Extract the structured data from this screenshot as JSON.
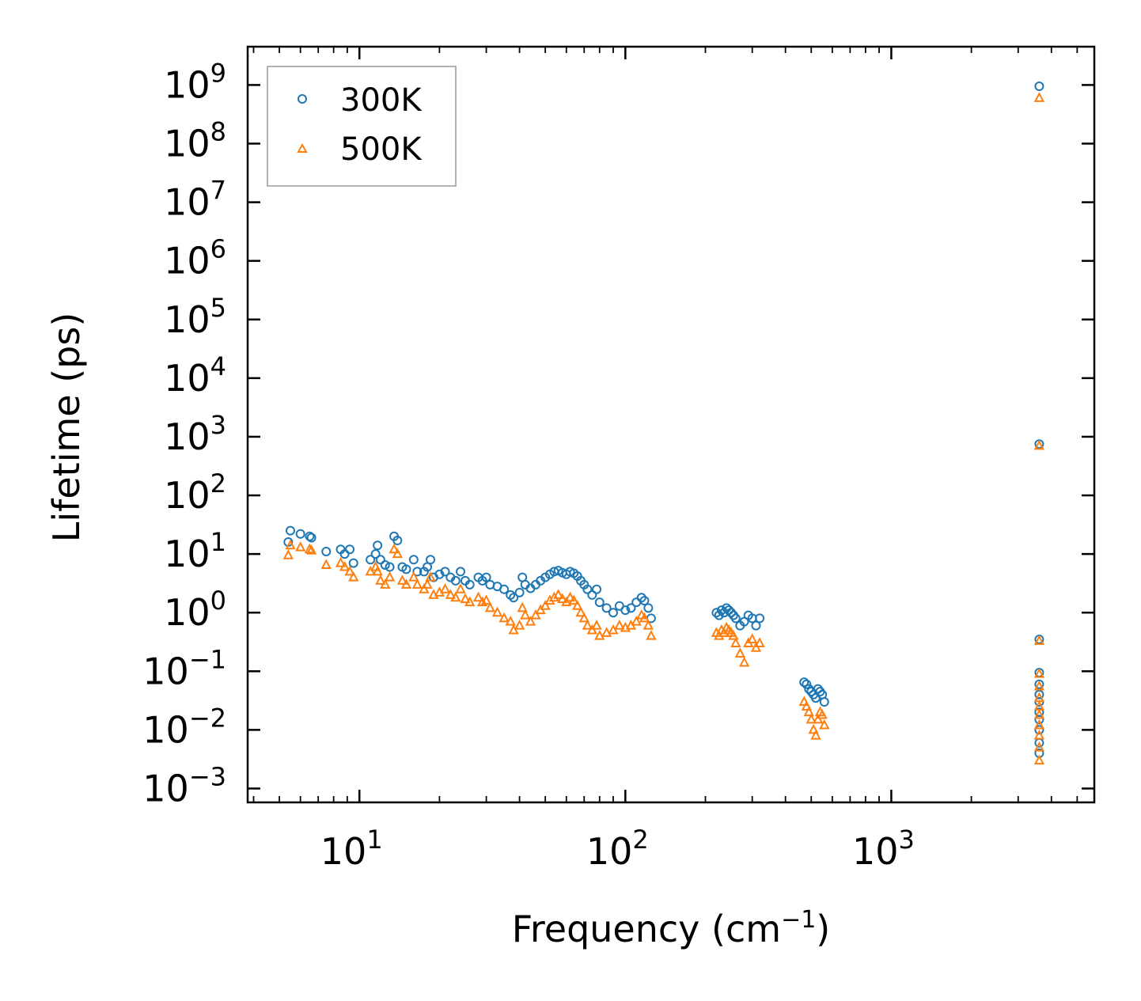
{
  "chart_data": {
    "type": "scatter",
    "title": "",
    "xlabel": "Frequency (cm",
    "xlabel_sup": "−1",
    "xlabel_close": ")",
    "ylabel": "Lifetime (ps)",
    "xscale": "log",
    "yscale": "log",
    "xlim": [
      3.8,
      5800
    ],
    "ylim": [
      0.00058,
      4500000000
    ],
    "x_ticks": [
      {
        "base": "10",
        "exp": "1",
        "value": 10
      },
      {
        "base": "10",
        "exp": "2",
        "value": 100
      },
      {
        "base": "10",
        "exp": "3",
        "value": 1000
      }
    ],
    "y_ticks": [
      {
        "base": "10",
        "exp": "9",
        "value": 1000000000.0
      },
      {
        "base": "10",
        "exp": "8",
        "value": 100000000.0
      },
      {
        "base": "10",
        "exp": "7",
        "value": 10000000.0
      },
      {
        "base": "10",
        "exp": "6",
        "value": 1000000.0
      },
      {
        "base": "10",
        "exp": "5",
        "value": 100000.0
      },
      {
        "base": "10",
        "exp": "4",
        "value": 10000.0
      },
      {
        "base": "10",
        "exp": "3",
        "value": 1000.0
      },
      {
        "base": "10",
        "exp": "2",
        "value": 100.0
      },
      {
        "base": "10",
        "exp": "1",
        "value": 10
      },
      {
        "base": "10",
        "exp": "0",
        "value": 1
      },
      {
        "base": "10",
        "exp": "−1",
        "value": 0.1
      },
      {
        "base": "10",
        "exp": "−2",
        "value": 0.01
      },
      {
        "base": "10",
        "exp": "−3",
        "value": 0.001
      }
    ],
    "legend_position": "top-left",
    "grid": false,
    "series": [
      {
        "name": "300K",
        "marker": "circle",
        "color": "#1f77b4",
        "points": [
          [
            5.4,
            16
          ],
          [
            5.5,
            25
          ],
          [
            6,
            22
          ],
          [
            6.5,
            20
          ],
          [
            6.6,
            19
          ],
          [
            7.5,
            11
          ],
          [
            8.5,
            12
          ],
          [
            8.8,
            10
          ],
          [
            9.2,
            12
          ],
          [
            9.5,
            7
          ],
          [
            11,
            8
          ],
          [
            11.5,
            10
          ],
          [
            11.7,
            14
          ],
          [
            12,
            8
          ],
          [
            12.5,
            6.5
          ],
          [
            13,
            6
          ],
          [
            13.5,
            20
          ],
          [
            13.9,
            17
          ],
          [
            14.5,
            6
          ],
          [
            15,
            5.5
          ],
          [
            16,
            8
          ],
          [
            16.5,
            5
          ],
          [
            17.5,
            5
          ],
          [
            18,
            6
          ],
          [
            18.5,
            8
          ],
          [
            19,
            4
          ],
          [
            20,
            4.5
          ],
          [
            21,
            5
          ],
          [
            22,
            4
          ],
          [
            23,
            3.5
          ],
          [
            24,
            5
          ],
          [
            25,
            3.5
          ],
          [
            26,
            3
          ],
          [
            28,
            4
          ],
          [
            29,
            3.5
          ],
          [
            30,
            4
          ],
          [
            31,
            3
          ],
          [
            33,
            2.8
          ],
          [
            35,
            2.5
          ],
          [
            37,
            2
          ],
          [
            38,
            1.8
          ],
          [
            40,
            2.2
          ],
          [
            41,
            4
          ],
          [
            42,
            3
          ],
          [
            44,
            2.6
          ],
          [
            46,
            3
          ],
          [
            48,
            3.5
          ],
          [
            50,
            4
          ],
          [
            52,
            4.5
          ],
          [
            54,
            5
          ],
          [
            56,
            5.2
          ],
          [
            58,
            4.8
          ],
          [
            60,
            4.5
          ],
          [
            62,
            5
          ],
          [
            64,
            4.7
          ],
          [
            66,
            4.2
          ],
          [
            68,
            3.5
          ],
          [
            70,
            3
          ],
          [
            72,
            2.5
          ],
          [
            75,
            2
          ],
          [
            78,
            2.5
          ],
          [
            80,
            1.5
          ],
          [
            85,
            1.2
          ],
          [
            90,
            1
          ],
          [
            95,
            1.3
          ],
          [
            100,
            1.1
          ],
          [
            105,
            1.2
          ],
          [
            110,
            1.5
          ],
          [
            115,
            1.8
          ],
          [
            118,
            1.6
          ],
          [
            122,
            1.2
          ],
          [
            125,
            0.8
          ],
          [
            220,
            1
          ],
          [
            225,
            0.9
          ],
          [
            230,
            1.1
          ],
          [
            235,
            1
          ],
          [
            240,
            1.2
          ],
          [
            245,
            1.1
          ],
          [
            250,
            1
          ],
          [
            255,
            0.9
          ],
          [
            260,
            0.8
          ],
          [
            270,
            0.6
          ],
          [
            280,
            0.7
          ],
          [
            290,
            0.9
          ],
          [
            300,
            0.8
          ],
          [
            310,
            0.6
          ],
          [
            320,
            0.8
          ],
          [
            470,
            0.065
          ],
          [
            480,
            0.06
          ],
          [
            490,
            0.05
          ],
          [
            500,
            0.045
          ],
          [
            510,
            0.04
          ],
          [
            520,
            0.035
          ],
          [
            530,
            0.05
          ],
          [
            540,
            0.045
          ],
          [
            550,
            0.04
          ],
          [
            560,
            0.03
          ],
          [
            3600,
            950000000
          ],
          [
            3600,
            750
          ],
          [
            3600,
            0.35
          ],
          [
            3600,
            0.095
          ],
          [
            3600,
            0.06
          ],
          [
            3600,
            0.04
          ],
          [
            3600,
            0.03
          ],
          [
            3600,
            0.02
          ],
          [
            3600,
            0.015
          ],
          [
            3600,
            0.01
          ],
          [
            3600,
            0.006
          ],
          [
            3600,
            0.004
          ]
        ]
      },
      {
        "name": "500K",
        "marker": "triangle",
        "color": "#ff7f0e",
        "points": [
          [
            5.4,
            9.5
          ],
          [
            5.5,
            14
          ],
          [
            6,
            13
          ],
          [
            6.5,
            12
          ],
          [
            6.6,
            11.5
          ],
          [
            7.5,
            6.5
          ],
          [
            8.5,
            7
          ],
          [
            8.8,
            6
          ],
          [
            9.2,
            5
          ],
          [
            9.5,
            4
          ],
          [
            11,
            5
          ],
          [
            11.5,
            6
          ],
          [
            11.7,
            5
          ],
          [
            12,
            3.5
          ],
          [
            12.5,
            3
          ],
          [
            13,
            4
          ],
          [
            13.5,
            12
          ],
          [
            13.9,
            10
          ],
          [
            14.5,
            3.5
          ],
          [
            15,
            3
          ],
          [
            16,
            4
          ],
          [
            16.5,
            3
          ],
          [
            17.5,
            2.5
          ],
          [
            18,
            3
          ],
          [
            18.5,
            4
          ],
          [
            19,
            2
          ],
          [
            20,
            2.2
          ],
          [
            21,
            2.5
          ],
          [
            22,
            2
          ],
          [
            23,
            1.8
          ],
          [
            24,
            2.5
          ],
          [
            25,
            1.7
          ],
          [
            26,
            1.5
          ],
          [
            28,
            1.8
          ],
          [
            29,
            1.5
          ],
          [
            30,
            1.6
          ],
          [
            31,
            1.2
          ],
          [
            33,
            1
          ],
          [
            35,
            0.8
          ],
          [
            37,
            0.7
          ],
          [
            38,
            0.5
          ],
          [
            40,
            0.6
          ],
          [
            41,
            1.2
          ],
          [
            42,
            0.9
          ],
          [
            44,
            0.7
          ],
          [
            46,
            0.9
          ],
          [
            48,
            1.1
          ],
          [
            50,
            1.3
          ],
          [
            52,
            1.6
          ],
          [
            54,
            1.8
          ],
          [
            56,
            2
          ],
          [
            58,
            1.7
          ],
          [
            60,
            1.5
          ],
          [
            62,
            1.8
          ],
          [
            64,
            1.6
          ],
          [
            66,
            1.3
          ],
          [
            68,
            1
          ],
          [
            70,
            0.8
          ],
          [
            72,
            0.6
          ],
          [
            75,
            0.5
          ],
          [
            78,
            0.6
          ],
          [
            80,
            0.4
          ],
          [
            85,
            0.45
          ],
          [
            90,
            0.5
          ],
          [
            95,
            0.6
          ],
          [
            100,
            0.55
          ],
          [
            105,
            0.6
          ],
          [
            110,
            0.7
          ],
          [
            115,
            0.9
          ],
          [
            118,
            0.8
          ],
          [
            122,
            0.6
          ],
          [
            125,
            0.4
          ],
          [
            220,
            0.45
          ],
          [
            225,
            0.4
          ],
          [
            230,
            0.5
          ],
          [
            235,
            0.45
          ],
          [
            240,
            0.55
          ],
          [
            245,
            0.5
          ],
          [
            250,
            0.45
          ],
          [
            255,
            0.4
          ],
          [
            260,
            0.3
          ],
          [
            270,
            0.2
          ],
          [
            280,
            0.14
          ],
          [
            290,
            0.3
          ],
          [
            300,
            0.35
          ],
          [
            310,
            0.25
          ],
          [
            320,
            0.3
          ],
          [
            470,
            0.03
          ],
          [
            480,
            0.025
          ],
          [
            490,
            0.02
          ],
          [
            500,
            0.015
          ],
          [
            510,
            0.01
          ],
          [
            520,
            0.008
          ],
          [
            530,
            0.015
          ],
          [
            540,
            0.02
          ],
          [
            550,
            0.018
          ],
          [
            560,
            0.012
          ],
          [
            3600,
            600000000
          ],
          [
            3600,
            700
          ],
          [
            3600,
            0.33
          ],
          [
            3600,
            0.09
          ],
          [
            3600,
            0.055
          ],
          [
            3600,
            0.035
          ],
          [
            3600,
            0.025
          ],
          [
            3600,
            0.018
          ],
          [
            3600,
            0.012
          ],
          [
            3600,
            0.008
          ],
          [
            3600,
            0.005
          ],
          [
            3600,
            0.003
          ]
        ]
      }
    ]
  }
}
